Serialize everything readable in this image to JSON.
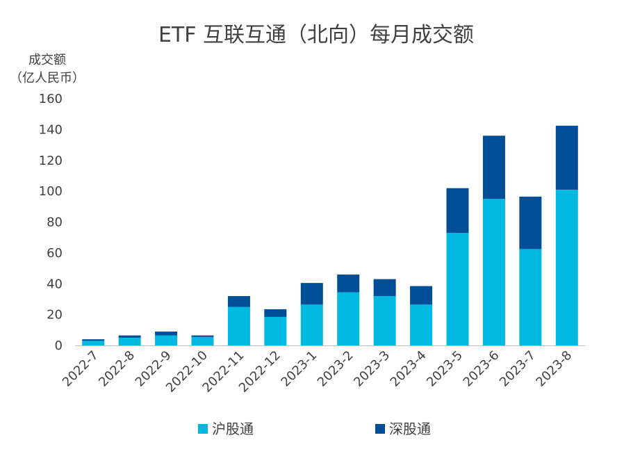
{
  "chart_data": {
    "type": "bar",
    "stacked": true,
    "title": "ETF 互联互通（北向）每月成交额",
    "ylabel_line1": "成交额",
    "ylabel_line2": "（亿人民币）",
    "ylim": [
      0,
      160
    ],
    "yticks": [
      0,
      20,
      40,
      60,
      80,
      100,
      120,
      140,
      160
    ],
    "grid": false,
    "legend_position": "bottom",
    "categories": [
      "2022-7",
      "2022-8",
      "2022-9",
      "2022-10",
      "2022-11",
      "2022-12",
      "2023-1",
      "2023-2",
      "2023-3",
      "2023-4",
      "2023-5",
      "2023-6",
      "2023-7",
      "2023-8"
    ],
    "series": [
      {
        "name": "沪股通",
        "color": "#00B8E0",
        "values": [
          3,
          5,
          6.5,
          5.5,
          25,
          18.5,
          26.5,
          34.5,
          32,
          26.5,
          73,
          95,
          62.5,
          101
        ]
      },
      {
        "name": "深股通",
        "color": "#004E96",
        "values": [
          1,
          1.5,
          2.5,
          1,
          7,
          5,
          14,
          11.5,
          11,
          12,
          29,
          41,
          34,
          41.5
        ]
      }
    ]
  }
}
